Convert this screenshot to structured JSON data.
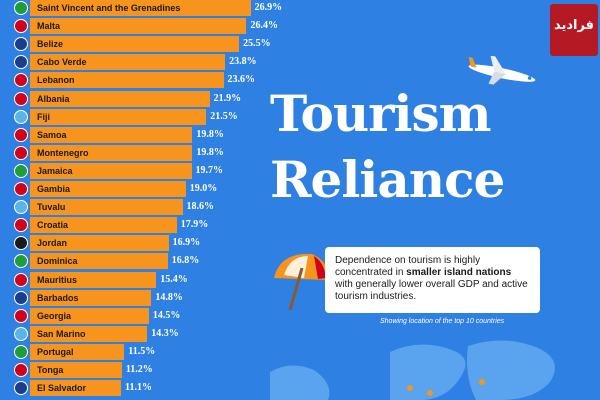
{
  "chart_data": {
    "type": "bar",
    "orientation": "horizontal",
    "categories": [
      "Saint Vincent and the Grenadines",
      "Malta",
      "Belize",
      "Cabo Verde",
      "Lebanon",
      "Albania",
      "Fiji",
      "Samoa",
      "Montenegro",
      "Jamaica",
      "Gambia",
      "Tuvalu",
      "Croatia",
      "Jordan",
      "Dominica",
      "Mauritius",
      "Barbados",
      "Georgia",
      "San Marino",
      "Portugal",
      "Tonga",
      "El Salvador"
    ],
    "values": [
      26.9,
      26.4,
      25.5,
      23.8,
      23.6,
      21.9,
      21.5,
      19.8,
      19.8,
      19.7,
      19.0,
      18.6,
      17.9,
      16.9,
      16.8,
      15.4,
      14.8,
      14.5,
      14.3,
      11.5,
      11.2,
      11.1
    ],
    "value_labels": [
      "26.9%",
      "26.4%",
      "25.5%",
      "23.8%",
      "23.6%",
      "21.9%",
      "21.5%",
      "19.8%",
      "19.8%",
      "19.7%",
      "19.0%",
      "18.6%",
      "17.9%",
      "16.9%",
      "16.8%",
      "15.4%",
      "14.8%",
      "14.5%",
      "14.3%",
      "11.5%",
      "11.2%",
      "11.1%"
    ],
    "flag_colors": [
      "#1f9d3a",
      "#d0021b",
      "#1a3e8c",
      "#1a3e8c",
      "#d0021b",
      "#d0021b",
      "#5ab4e5",
      "#d0021b",
      "#d0021b",
      "#1f9d3a",
      "#d0021b",
      "#5ab4e5",
      "#d0021b",
      "#1a1a1a",
      "#1f9d3a",
      "#d0021b",
      "#1a3e8c",
      "#d0021b",
      "#5ab4e5",
      "#1f9d3a",
      "#d0021b",
      "#1a3e8c"
    ],
    "xlim": [
      0,
      27
    ]
  },
  "title_line1": "Tourism",
  "title_line2": "Reliance",
  "info_text_before": "Dependence on tourism is highly concentrated in ",
  "info_text_bold": "smaller island nations",
  "info_text_after": " with generally lower overall GDP and active tourism industries.",
  "note": "Showing location of the top 10 countries",
  "logo_text": "فرادید",
  "colors": {
    "background": "#2f80e3",
    "bar": "#f7941d",
    "text_light": "#ffffff"
  }
}
